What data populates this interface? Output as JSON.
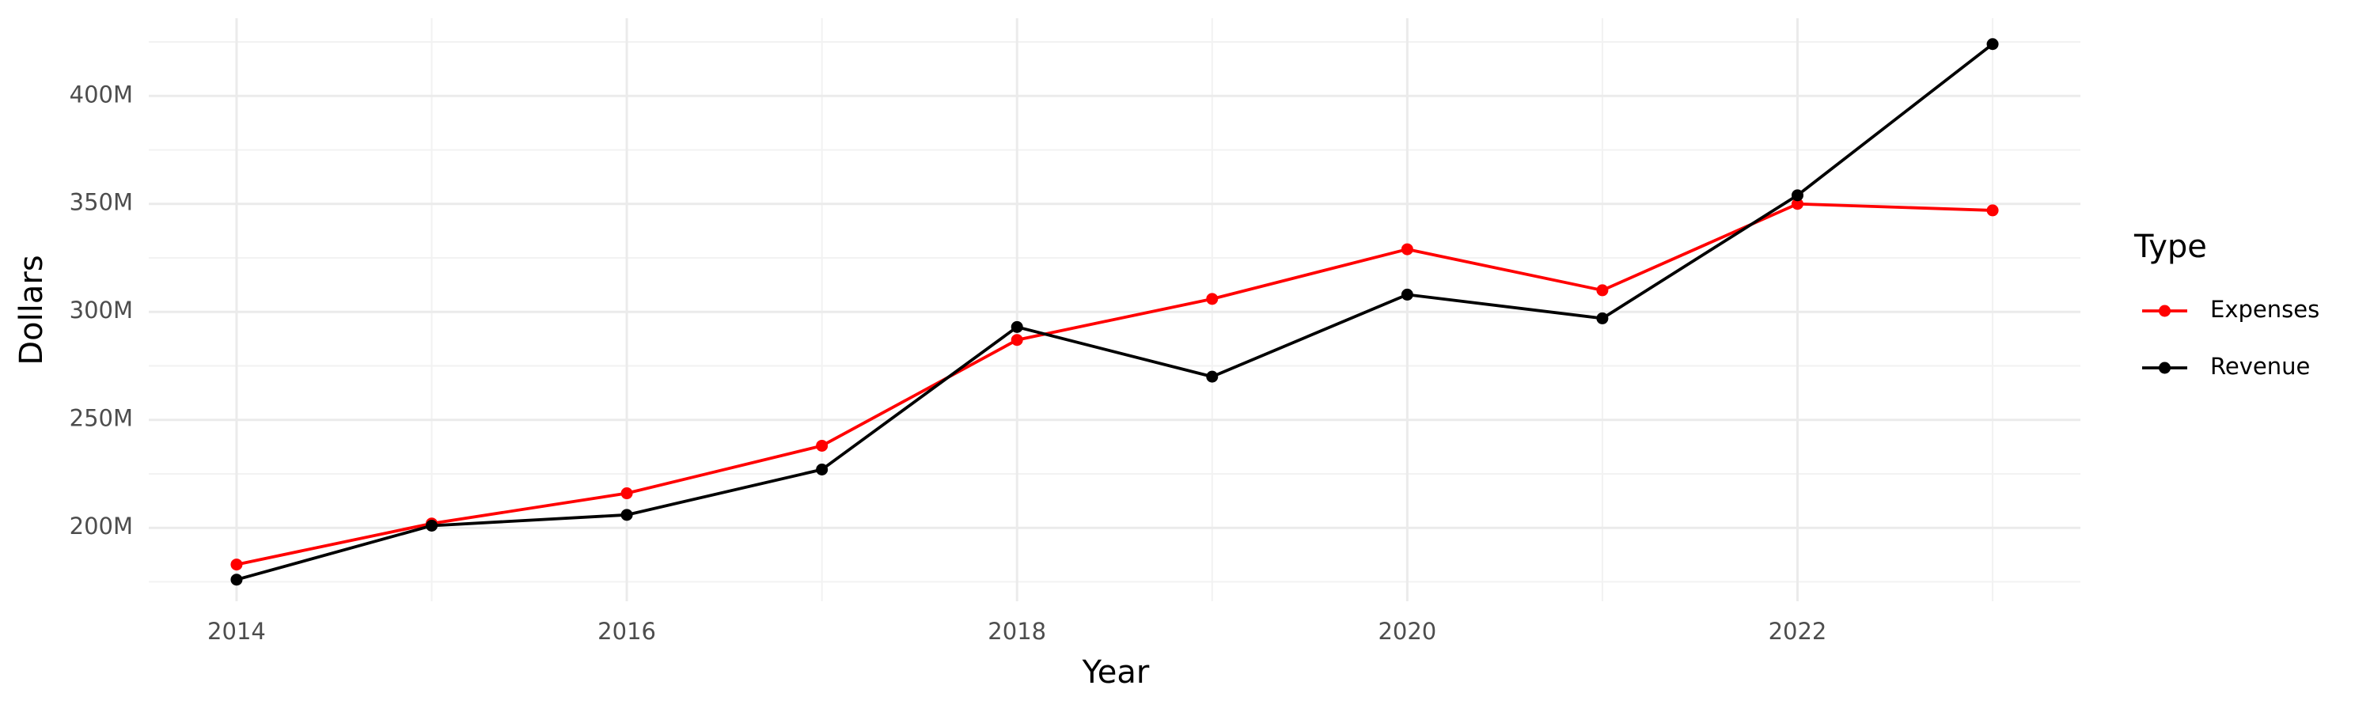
{
  "chart_data": {
    "type": "line",
    "x_label": "Year",
    "y_label": "Dollars",
    "legend_title": "Type",
    "legend": "right",
    "grid": true,
    "x": [
      2014,
      2015,
      2016,
      2017,
      2018,
      2019,
      2020,
      2021,
      2022,
      2023
    ],
    "series": [
      {
        "name": "Expenses",
        "color": "#ff0000",
        "values": [
          183000000,
          202000000,
          216000000,
          238000000,
          287000000,
          306000000,
          329000000,
          310000000,
          350000000,
          347000000
        ]
      },
      {
        "name": "Revenue",
        "color": "#000000",
        "values": [
          176000000,
          201000000,
          206000000,
          227000000,
          293000000,
          270000000,
          308000000,
          297000000,
          354000000,
          424000000
        ]
      }
    ],
    "xlim": [
      2013.55,
      2023.45
    ],
    "xticks": [
      2014,
      2016,
      2018,
      2020,
      2022
    ],
    "ylim": [
      166000000,
      436000000
    ],
    "yticks": [
      {
        "value": 200000000,
        "label": "200M"
      },
      {
        "value": 250000000,
        "label": "250M"
      },
      {
        "value": 300000000,
        "label": "300M"
      },
      {
        "value": 350000000,
        "label": "350M"
      },
      {
        "value": 400000000,
        "label": "400M"
      }
    ]
  }
}
